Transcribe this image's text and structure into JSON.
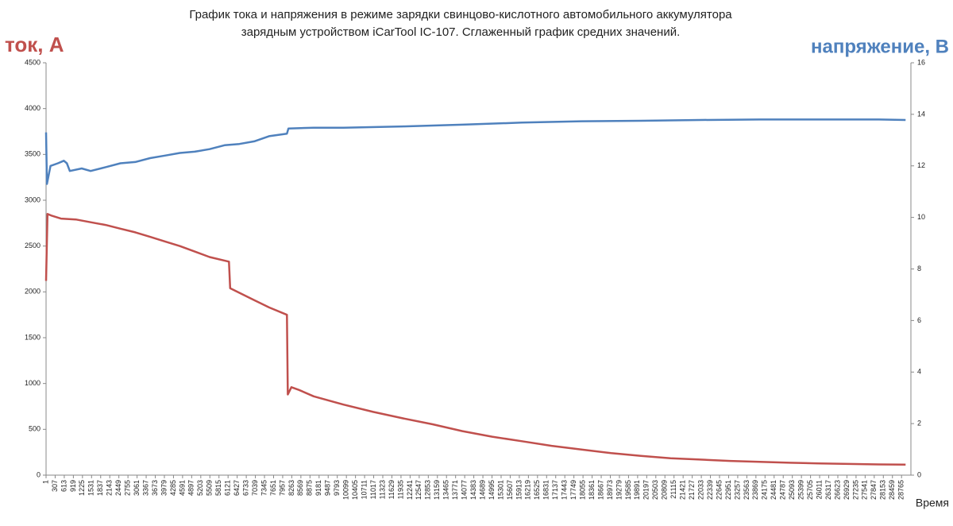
{
  "chart_data": {
    "type": "line",
    "title": [
      "График тока и напряжения в режиме зарядки свинцово-кислотного автомобильного аккумулятора",
      "зарядным устройством iCarTool IC-107. Сглаженный график средних значений."
    ],
    "y_label": "ток, А",
    "y2_label": "напряжение, В",
    "x_label": "Время",
    "xlim": [
      1,
      29080
    ],
    "xticks": [
      1,
      307,
      613,
      919,
      1225,
      1531,
      1837,
      2143,
      2449,
      2755,
      3061,
      3367,
      3673,
      3979,
      4285,
      4591,
      4897,
      5203,
      5509,
      5815,
      6121,
      6427,
      6733,
      7039,
      7345,
      7651,
      7957,
      8263,
      8569,
      8875,
      9181,
      9487,
      9793,
      10099,
      10405,
      10711,
      11017,
      11323,
      11629,
      11935,
      12241,
      12547,
      12853,
      13159,
      13465,
      13771,
      14077,
      14383,
      14689,
      14995,
      15301,
      15607,
      15913,
      16219,
      16525,
      16831,
      17137,
      17443,
      17749,
      18055,
      18361,
      18667,
      18973,
      19279,
      19585,
      19891,
      20197,
      20503,
      20809,
      21115,
      21421,
      21727,
      22033,
      22339,
      22645,
      22951,
      23257,
      23563,
      23869,
      24175,
      24481,
      24787,
      25093,
      25399,
      25705,
      26011,
      26317,
      26623,
      26929,
      27235,
      27541,
      27847,
      28153,
      28459,
      28765
    ],
    "ylim": [
      0,
      4500
    ],
    "yticks": [
      0,
      500,
      1000,
      1500,
      2000,
      2500,
      3000,
      3500,
      4000,
      4500
    ],
    "y2lim": [
      0,
      16
    ],
    "y2ticks": [
      0,
      2,
      4,
      6,
      8,
      10,
      12,
      14,
      16
    ],
    "series": [
      {
        "name": "ток",
        "color": "#c0504d",
        "x": [
          1,
          50,
          200,
          500,
          1000,
          1500,
          2000,
          2500,
          3000,
          3500,
          4000,
          4500,
          5000,
          5500,
          6150,
          6190,
          6500,
          7000,
          7500,
          8100,
          8130,
          8250,
          8500,
          9000,
          10000,
          11000,
          12000,
          13000,
          14000,
          15000,
          16000,
          17000,
          18000,
          19000,
          20000,
          21000,
          22000,
          23000,
          24000,
          25000,
          26000,
          27000,
          28000,
          28900
        ],
        "values": [
          2120,
          2850,
          2830,
          2800,
          2790,
          2760,
          2730,
          2690,
          2650,
          2600,
          2550,
          2500,
          2440,
          2380,
          2330,
          2040,
          1990,
          1910,
          1830,
          1750,
          880,
          960,
          930,
          860,
          770,
          690,
          620,
          555,
          480,
          420,
          370,
          320,
          280,
          240,
          210,
          185,
          170,
          155,
          145,
          135,
          128,
          122,
          117,
          115
        ]
      },
      {
        "name": "напряжение",
        "color": "#4f81bd",
        "axis": "y2",
        "x": [
          1,
          30,
          150,
          400,
          600,
          700,
          800,
          1200,
          1500,
          2000,
          2500,
          3000,
          3500,
          4000,
          4500,
          5000,
          5500,
          6000,
          6500,
          7000,
          7500,
          8100,
          8150,
          9000,
          10000,
          12000,
          14000,
          16000,
          18000,
          20000,
          22000,
          24000,
          26000,
          28000,
          28900
        ],
        "values": [
          13.3,
          11.3,
          12.0,
          12.1,
          12.2,
          12.1,
          11.8,
          11.9,
          11.8,
          11.95,
          12.1,
          12.15,
          12.3,
          12.4,
          12.5,
          12.55,
          12.65,
          12.8,
          12.85,
          12.95,
          13.15,
          13.25,
          13.45,
          13.48,
          13.48,
          13.53,
          13.6,
          13.68,
          13.73,
          13.75,
          13.78,
          13.8,
          13.8,
          13.8,
          13.78
        ]
      }
    ]
  }
}
